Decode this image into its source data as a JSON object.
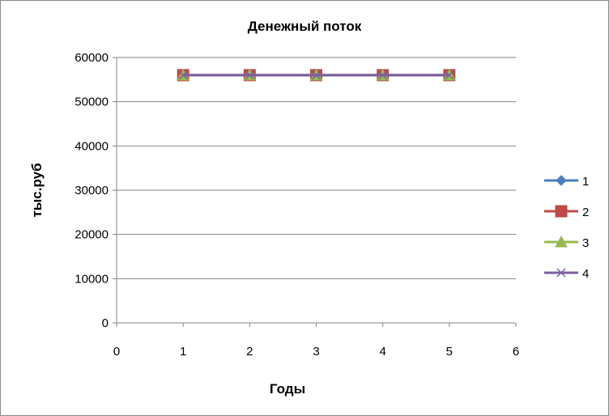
{
  "chart_data": {
    "type": "line",
    "title": "Денежный поток",
    "xlabel": "Годы",
    "ylabel": "тыс.руб",
    "xlim": [
      0,
      6
    ],
    "ylim": [
      0,
      60000
    ],
    "x_ticks": [
      "0",
      "1",
      "2",
      "3",
      "4",
      "5",
      "6"
    ],
    "y_ticks": [
      "0",
      "10000",
      "20000",
      "30000",
      "40000",
      "50000",
      "60000"
    ],
    "grid": "horizontal",
    "legend_position": "right",
    "x": [
      1,
      2,
      3,
      4,
      5
    ],
    "series": [
      {
        "name": "1",
        "values": [
          56000,
          56000,
          56000,
          56000,
          56000
        ],
        "color": "#4a7ebb",
        "marker": "diamond"
      },
      {
        "name": "2",
        "values": [
          56000,
          56000,
          56000,
          56000,
          56000
        ],
        "color": "#be4b48",
        "marker": "square"
      },
      {
        "name": "3",
        "values": [
          56000,
          56000,
          56000,
          56000,
          56000
        ],
        "color": "#98b954",
        "marker": "triangle"
      },
      {
        "name": "4",
        "values": [
          56000,
          56000,
          56000,
          56000,
          56000
        ],
        "color": "#7d5fa0",
        "marker": "x"
      }
    ]
  }
}
